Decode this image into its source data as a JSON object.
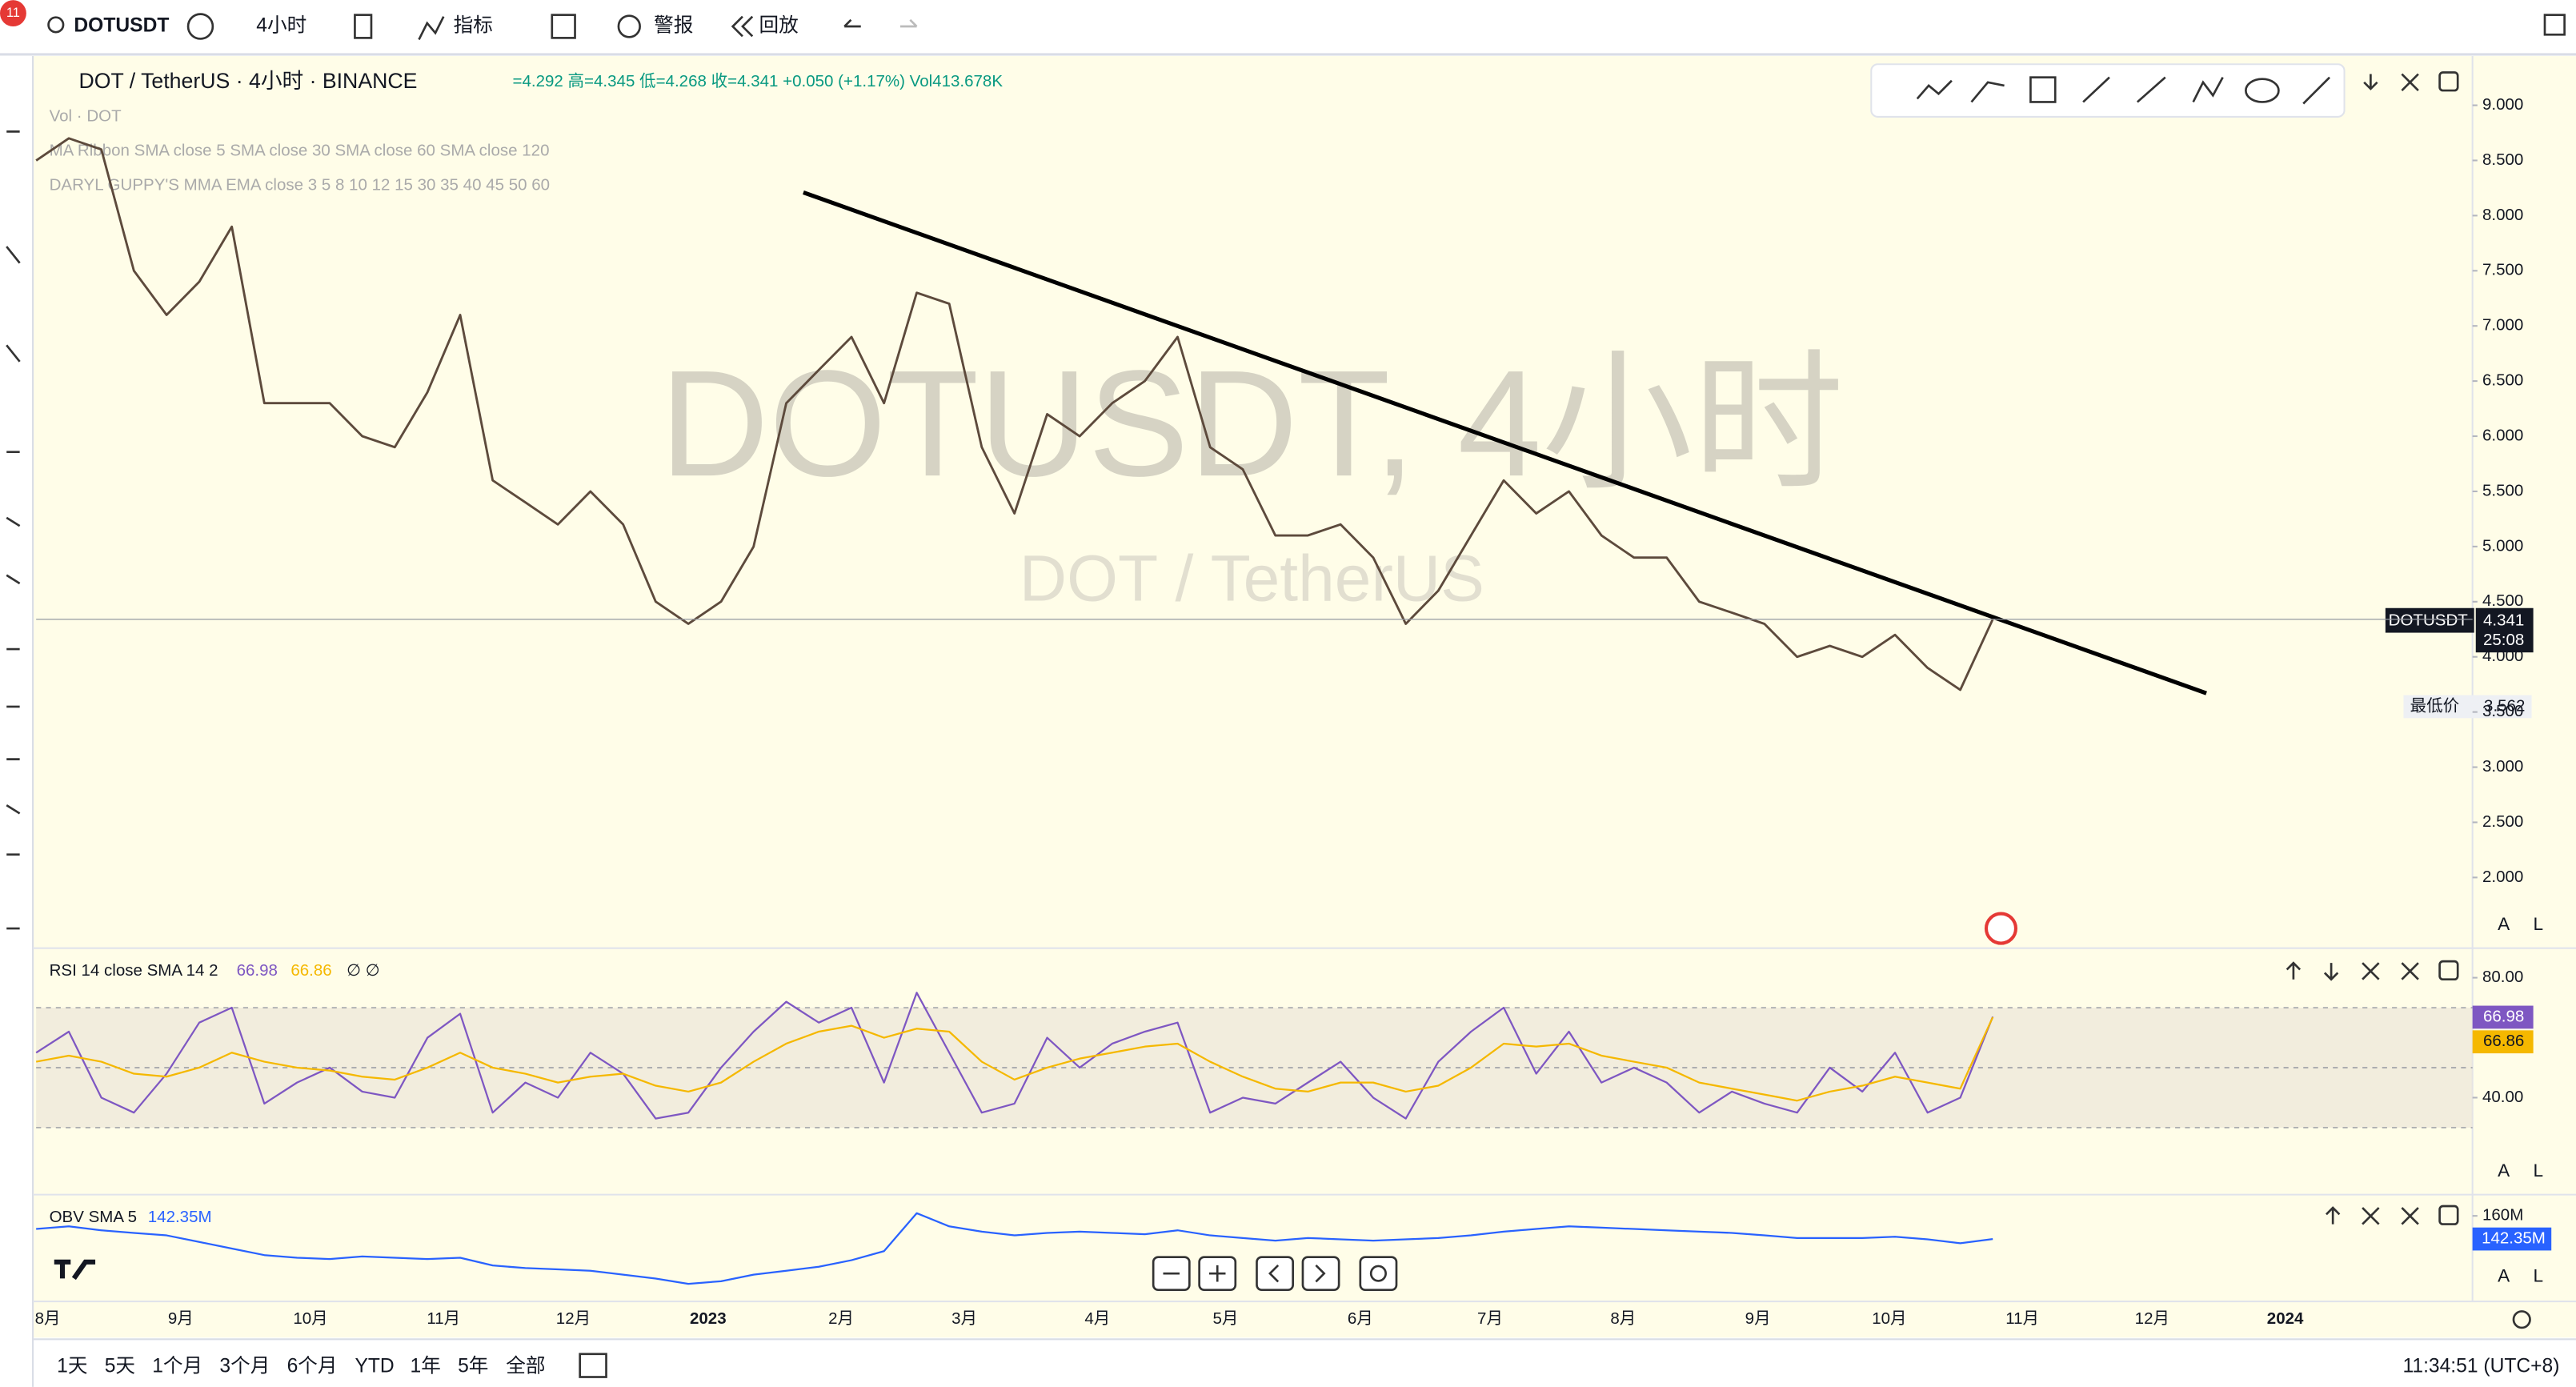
{
  "toolbar": {
    "badge": "11",
    "symbol": "DOTUSDT",
    "interval": "4小时",
    "indicators": "指标",
    "alerts": "警报",
    "replay": "回放"
  },
  "legend": {
    "title": "DOT / TetherUS · 4小时 · BINANCE",
    "ohlc": "=4.292 高=4.345 低=4.268 收=4.341 +0.050 (+1.17%) Vol413.678K",
    "indicators": [
      "Vol · DOT",
      "MA Ribbon SMA close 5 SMA close 30 SMA close 60 SMA close 120",
      "DARYL GUPPY'S MMA EMA close 3 5 8 10 12 15 30 35 40 45 50 60"
    ]
  },
  "watermark": {
    "title": "DOTUSDT, 4小时",
    "subtitle": "DOT / TetherUS"
  },
  "price_label": {
    "symbol": "DOTUSDT",
    "price": 4.341,
    "countdown": "25:08",
    "low_label": "最低价",
    "low": 3.562
  },
  "pane_buttons": [
    "A",
    "L"
  ],
  "time_axis": [
    "8月",
    "9月",
    "10月",
    "11月",
    "12月",
    "2023",
    "2月",
    "3月",
    "4月",
    "5月",
    "6月",
    "7月",
    "8月",
    "9月",
    "10月",
    "11月",
    "12月",
    "2024"
  ],
  "bottom_bar": {
    "ranges": [
      "1天",
      "5天",
      "1个月",
      "3个月",
      "6个月",
      "YTD",
      "1年",
      "5年",
      "全部"
    ],
    "clock": "11:34:51 (UTC+8)"
  },
  "chart_data": [
    {
      "type": "line",
      "title": "DOTUSDT",
      "series": [
        {
          "name": "DOTUSDT",
          "color": "#5d4a3c",
          "values": [
            8.5,
            8.7,
            8.6,
            7.5,
            7.1,
            7.4,
            7.9,
            6.3,
            6.3,
            6.3,
            6.0,
            5.9,
            6.4,
            7.1,
            5.6,
            5.4,
            5.2,
            5.5,
            5.2,
            4.5,
            4.3,
            4.5,
            5.0,
            6.3,
            6.6,
            6.9,
            6.3,
            7.3,
            7.2,
            5.9,
            5.3,
            6.2,
            6.0,
            6.3,
            6.5,
            6.9,
            5.9,
            5.7,
            5.1,
            5.1,
            5.2,
            4.9,
            4.3,
            4.6,
            5.1,
            5.6,
            5.3,
            5.5,
            5.1,
            4.9,
            4.9,
            4.5,
            4.4,
            4.3,
            4.0,
            4.1,
            4.0,
            4.2,
            3.9,
            3.7,
            4.341
          ]
        }
      ],
      "trendline": {
        "start": 8.21,
        "end": 3.67,
        "color": "#000000"
      },
      "ylim": [
        1.374,
        9.417
      ],
      "yticks": [
        {
          "value": 2,
          "label": "2.000"
        },
        {
          "value": 2.5,
          "label": "2.500"
        },
        {
          "value": 3,
          "label": "3.000"
        },
        {
          "value": 3.5,
          "label": "3.500"
        },
        {
          "value": 4,
          "label": "4.000"
        },
        {
          "value": 4.5,
          "label": "4.500"
        },
        {
          "value": 5,
          "label": "5.000"
        },
        {
          "value": 5.5,
          "label": "5.500"
        },
        {
          "value": 6,
          "label": "6.000"
        },
        {
          "value": 6.5,
          "label": "6.500"
        },
        {
          "value": 7,
          "label": "7.000"
        },
        {
          "value": 7.5,
          "label": "7.500"
        },
        {
          "value": 8,
          "label": "8.000"
        },
        {
          "value": 8.5,
          "label": "8.500"
        },
        {
          "value": 9,
          "label": "9.000"
        }
      ],
      "grid": false
    },
    {
      "type": "line",
      "title": "RSI 14 close SMA 14 2",
      "extra": "∅ ∅",
      "series": [
        {
          "name": "RSI",
          "color": "#7e57c2",
          "values": [
            55,
            62,
            40,
            35,
            48,
            65,
            70,
            38,
            45,
            50,
            42,
            40,
            60,
            68,
            35,
            45,
            40,
            55,
            48,
            33,
            35,
            50,
            62,
            72,
            65,
            70,
            45,
            75,
            55,
            35,
            38,
            60,
            50,
            58,
            62,
            65,
            35,
            40,
            38,
            45,
            52,
            40,
            33,
            52,
            62,
            70,
            48,
            62,
            45,
            50,
            45,
            35,
            42,
            38,
            35,
            50,
            42,
            55,
            35,
            40,
            66.98
          ]
        },
        {
          "name": "SMA",
          "color": "#f5b800",
          "values": [
            52,
            54,
            52,
            48,
            47,
            50,
            55,
            52,
            50,
            49,
            47,
            46,
            50,
            55,
            50,
            48,
            45,
            47,
            48,
            44,
            42,
            45,
            52,
            58,
            62,
            64,
            60,
            63,
            62,
            52,
            46,
            50,
            53,
            55,
            57,
            58,
            52,
            47,
            43,
            42,
            45,
            45,
            42,
            44,
            50,
            58,
            57,
            58,
            54,
            52,
            50,
            45,
            43,
            41,
            39,
            42,
            44,
            47,
            45,
            43,
            66.86
          ]
        }
      ],
      "bands": [
        30,
        50,
        70
      ],
      "ylim": [
        8.2,
        89.3
      ],
      "yticks": [
        {
          "value": 40,
          "label": "40.00"
        },
        {
          "value": 80,
          "label": "80.00"
        }
      ]
    },
    {
      "type": "line",
      "title": "OBV SMA 5",
      "series": [
        {
          "name": "OBV",
          "color": "#2962ff",
          "values": [
            150000000,
            152000000,
            149000000,
            147000000,
            145000000,
            140000000,
            135000000,
            130000000,
            128000000,
            127000000,
            129000000,
            128000000,
            127000000,
            128000000,
            122000000,
            120000000,
            119000000,
            118000000,
            115000000,
            112000000,
            108000000,
            110000000,
            115000000,
            118000000,
            121000000,
            126000000,
            133000000,
            162000000,
            152000000,
            148000000,
            145000000,
            147000000,
            148000000,
            147000000,
            146000000,
            149000000,
            145000000,
            143000000,
            141000000,
            143000000,
            142000000,
            141000000,
            142000000,
            143000000,
            145000000,
            148000000,
            150000000,
            152000000,
            151000000,
            150000000,
            149000000,
            148000000,
            147000000,
            145000000,
            143000000,
            143000000,
            143000000,
            144000000,
            142000000,
            139000000,
            142350000
          ],
          "last_value": 142350000,
          "value_label": "142.35M"
        }
      ],
      "ylim": [
        97000000,
        175000000
      ],
      "yticks": [
        {
          "value": 160000000,
          "label": "160M"
        }
      ]
    }
  ]
}
